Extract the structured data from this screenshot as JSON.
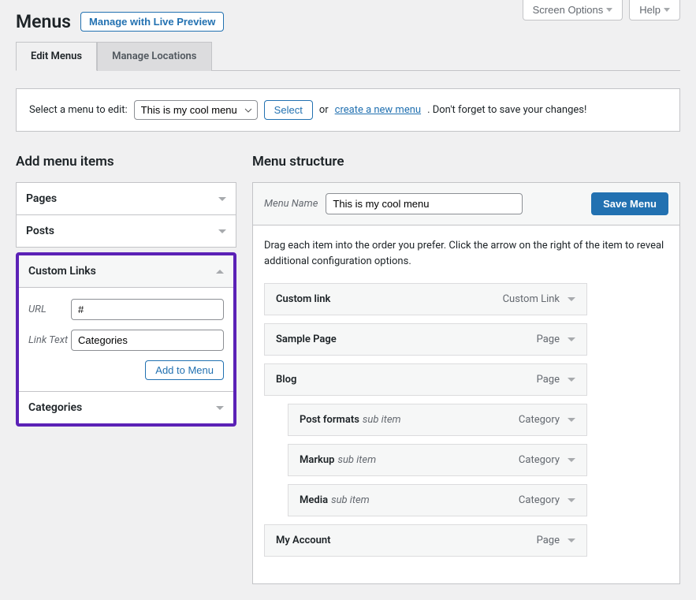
{
  "topButtons": {
    "screenOptions": "Screen Options",
    "help": "Help"
  },
  "page": {
    "title": "Menus",
    "previewBtn": "Manage with Live Preview"
  },
  "tabs": {
    "edit": "Edit Menus",
    "locations": "Manage Locations"
  },
  "selectBar": {
    "label": "Select a menu to edit:",
    "selected": "This is my cool menu",
    "selectBtn": "Select",
    "or": "or",
    "createLink": "create a new menu",
    "tail": ". Don't forget to save your changes!"
  },
  "leftCol": {
    "heading": "Add menu items",
    "pages": "Pages",
    "posts": "Posts",
    "customLinks": "Custom Links",
    "urlLabel": "URL",
    "urlValue": "#",
    "linkTextLabel": "Link Text",
    "linkTextValue": "Categories",
    "addBtn": "Add to Menu",
    "categories": "Categories"
  },
  "rightCol": {
    "heading": "Menu structure",
    "menuNameLabel": "Menu Name",
    "menuNameValue": "This is my cool menu",
    "saveBtn": "Save Menu",
    "instructions": "Drag each item into the order you prefer. Click the arrow on the right of the item to reveal additional configuration options.",
    "subItemLabel": "sub item",
    "items": [
      {
        "title": "Custom link",
        "type": "Custom Link",
        "indent": 0
      },
      {
        "title": "Sample Page",
        "type": "Page",
        "indent": 0
      },
      {
        "title": "Blog",
        "type": "Page",
        "indent": 0
      },
      {
        "title": "Post formats",
        "type": "Category",
        "indent": 1
      },
      {
        "title": "Markup",
        "type": "Category",
        "indent": 1
      },
      {
        "title": "Media",
        "type": "Category",
        "indent": 1
      },
      {
        "title": "My Account",
        "type": "Page",
        "indent": 0
      }
    ]
  }
}
